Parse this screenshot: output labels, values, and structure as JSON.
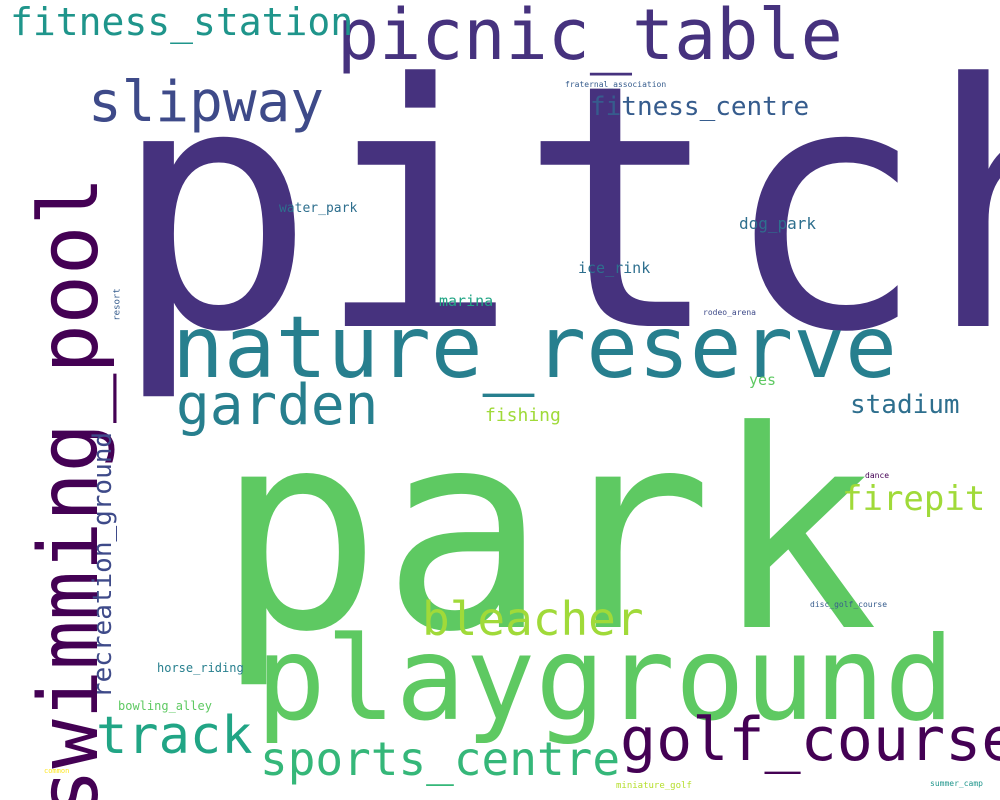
{
  "palette": {
    "purple_dark": "#440154",
    "indigo": "#46327e",
    "blue_violet": "#3e4a89",
    "blue": "#365c8d",
    "teal_blue": "#2e6f8e",
    "teal": "#277f8e",
    "teal_green": "#1f958b",
    "green_teal": "#21a585",
    "green": "#35b779",
    "bright_green": "#5ec962",
    "lime": "#a0da39",
    "yellow_green": "#b5de2b",
    "yellow": "#fde725"
  },
  "words": {
    "pitch": "pitch",
    "park": "park",
    "nature_reserve": "nature_reserve",
    "playground": "playground",
    "swimming_pool": "swimming_pool",
    "picnic_table": "picnic_table",
    "golf_course": "golf_course",
    "slipway": "slipway",
    "garden": "garden",
    "bleacher": "bleacher",
    "sports_centre": "sports_centre",
    "track": "track",
    "fitness_station": "fitness_station",
    "recreation_ground": "recreation_ground",
    "firepit": "firepit",
    "fitness_centre": "fitness_centre",
    "stadium": "stadium",
    "fishing": "fishing",
    "dog_park": "dog_park",
    "ice_rink": "ice_rink",
    "water_park": "water_park",
    "marina": "marina",
    "yes": "yes",
    "horse_riding": "horse_riding",
    "bowling_alley": "bowling_alley",
    "fraternal_association": "fraternal_association",
    "rodeo_arena": "rodeo_arena",
    "resort": "resort",
    "dance": "dance",
    "disc_golf_course": "disc_golf_course",
    "summer_camp": "summer_camp",
    "miniature_golf": "miniature_golf",
    "common": "common"
  }
}
